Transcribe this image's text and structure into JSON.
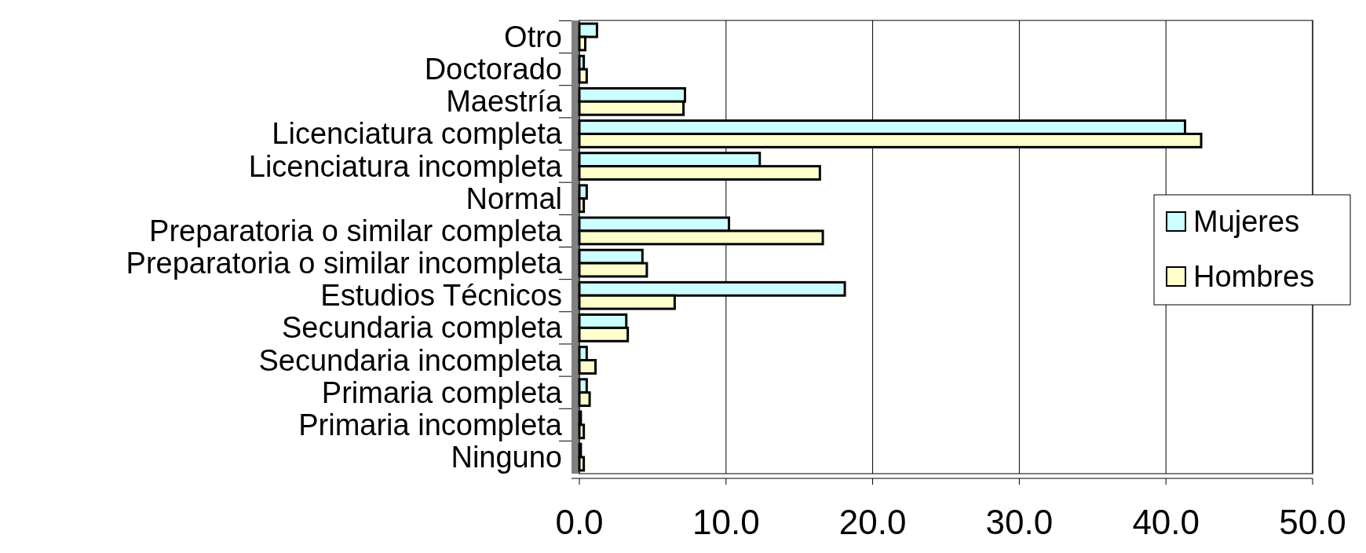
{
  "chart_data": {
    "type": "bar",
    "orientation": "horizontal",
    "categories": [
      "Otro",
      "Doctorado",
      "Maestría",
      "Licenciatura completa",
      "Licenciatura incompleta",
      "Normal",
      "Preparatoria o similar completa",
      "Preparatoria o similar incompleta",
      "Estudios Técnicos",
      "Secundaria completa",
      "Secundaria incompleta",
      "Primaria completa",
      "Primaria incompleta",
      "Ninguno"
    ],
    "series": [
      {
        "name": "Mujeres",
        "color": "#ccffff",
        "values": [
          1.2,
          0.3,
          7.2,
          41.3,
          12.3,
          0.5,
          10.2,
          4.3,
          18.1,
          3.2,
          0.5,
          0.5,
          0.1,
          0.1
        ]
      },
      {
        "name": "Hombres",
        "color": "#ffffcc",
        "values": [
          0.4,
          0.5,
          7.1,
          42.4,
          16.4,
          0.3,
          16.6,
          4.6,
          6.5,
          3.3,
          1.1,
          0.7,
          0.3,
          0.3
        ]
      }
    ],
    "xlim": [
      0,
      50
    ],
    "xticks": [
      {
        "value": 0,
        "label": "0.0"
      },
      {
        "value": 10,
        "label": "10.0"
      },
      {
        "value": 20,
        "label": "20.0"
      },
      {
        "value": 30,
        "label": "30.0"
      },
      {
        "value": 40,
        "label": "40.0"
      },
      {
        "value": 50,
        "label": "50.0"
      }
    ],
    "grid": "x",
    "legend": "right"
  }
}
